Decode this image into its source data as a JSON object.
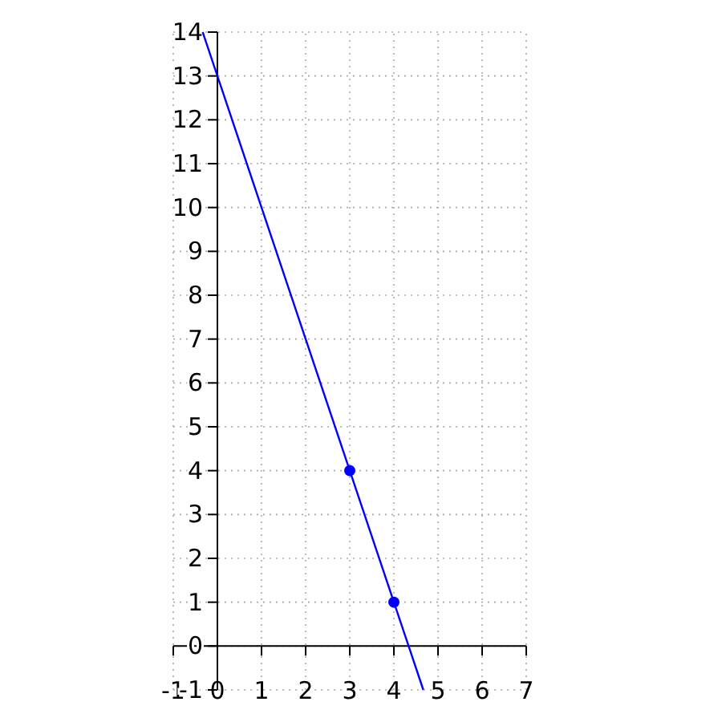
{
  "chart_data": {
    "type": "line",
    "series": [
      {
        "color": "#0000ff",
        "x": [
          -0.333,
          4.667
        ],
        "values": [
          14,
          -1
        ],
        "marker": "none"
      },
      {
        "type": "scatter",
        "color": "#0000ff",
        "x": [
          3,
          4
        ],
        "values": [
          4,
          1
        ],
        "marker": "circle"
      }
    ],
    "xlim": [
      -1,
      7
    ],
    "ylim": [
      -1,
      14
    ],
    "xticks": [
      -1,
      0,
      1,
      2,
      3,
      4,
      5,
      6,
      7
    ],
    "yticks": [
      -1,
      0,
      1,
      2,
      3,
      4,
      5,
      6,
      7,
      8,
      9,
      10,
      11,
      12,
      13,
      14
    ],
    "grid": true
  }
}
